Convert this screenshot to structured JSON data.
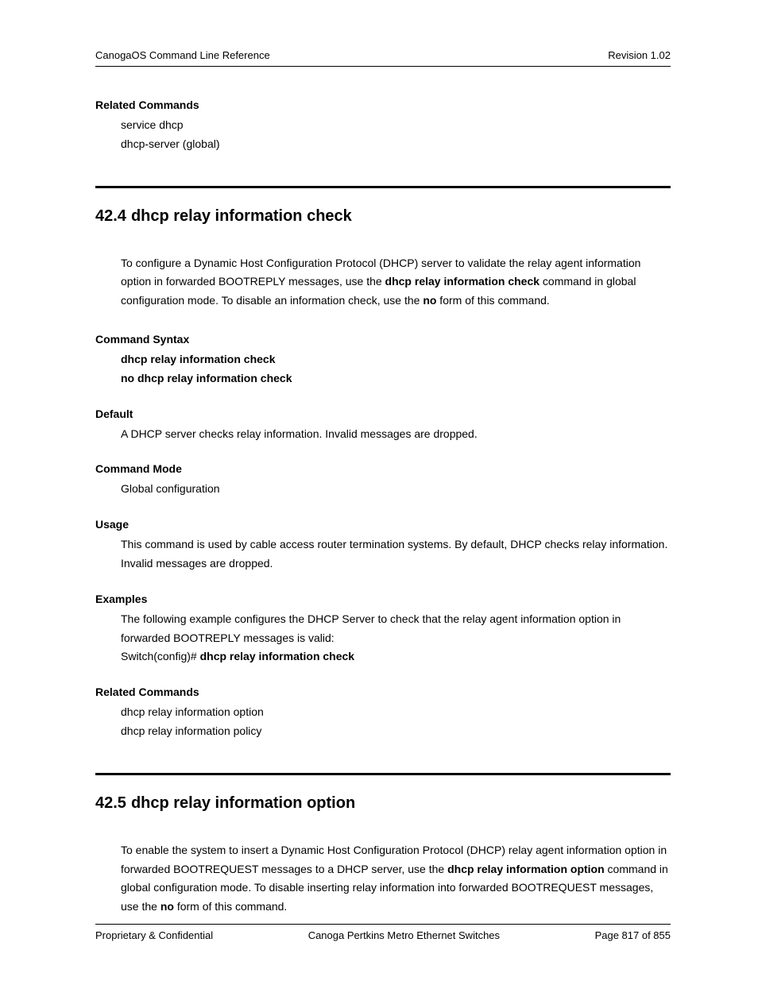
{
  "header": {
    "left": "CanogaOS Command Line Reference",
    "right": "Revision 1.02"
  },
  "footer": {
    "left": "Proprietary & Confidential",
    "center": "Canoga Pertkins Metro Ethernet Switches",
    "right": "Page 817 of 855"
  },
  "top_related": {
    "title": "Related Commands",
    "items": [
      "service dhcp",
      "dhcp-server (global)"
    ]
  },
  "s424": {
    "num": "42.4",
    "title": "dhcp relay information check",
    "intro_pre": "To configure a Dynamic Host Configuration Protocol (DHCP) server to validate the relay agent information option in forwarded BOOTREPLY messages, use the ",
    "intro_b1": "dhcp relay information check",
    "intro_mid": " command in global configuration mode. To disable an information check, use the ",
    "intro_b2": "no",
    "intro_post": " form of this command.",
    "syntax_title": "Command Syntax",
    "syntax1": "dhcp relay information check",
    "syntax2": "no dhcp relay information check",
    "default_title": "Default",
    "default_text": "A DHCP server checks relay information. Invalid messages are dropped.",
    "mode_title": "Command Mode",
    "mode_text": "Global configuration",
    "usage_title": "Usage",
    "usage_text": "This command is used by cable access router termination systems. By default, DHCP checks relay information. Invalid messages are dropped.",
    "examples_title": "Examples",
    "examples_intro": "The following example configures the DHCP Server to check that the relay agent information option in forwarded BOOTREPLY messages is valid:",
    "examples_prompt": "Switch(config)# ",
    "examples_cmd": "dhcp relay information check",
    "related_title": "Related Commands",
    "related1": "dhcp relay information option",
    "related2": "dhcp relay information policy"
  },
  "s425": {
    "num": "42.5",
    "title": "dhcp relay information option",
    "intro_pre": "To enable the system to insert a Dynamic Host Configuration Protocol (DHCP) relay agent information option in forwarded BOOTREQUEST messages to a DHCP server, use the ",
    "intro_b1": "dhcp relay information option",
    "intro_mid": " command in global configuration mode. To disable inserting relay information into forwarded BOOTREQUEST messages, use the ",
    "intro_b2": "no",
    "intro_post": " form of this command."
  }
}
